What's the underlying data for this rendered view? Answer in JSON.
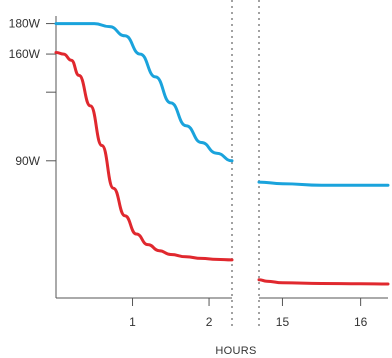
{
  "chart_data": {
    "type": "line",
    "xlabel": "HOURS",
    "ylabel": "",
    "title": "",
    "broken_x_axis": true,
    "x_segments": [
      {
        "range": [
          0,
          2.3
        ],
        "ticks": [
          {
            "value": 1,
            "label": "1"
          },
          {
            "value": 2,
            "label": "2"
          }
        ]
      },
      {
        "range": [
          14.7,
          16.35
        ],
        "ticks": [
          {
            "value": 15,
            "label": "15"
          },
          {
            "value": 16,
            "label": "16"
          }
        ]
      }
    ],
    "y_ticks": [
      {
        "value": 180,
        "label": "180W"
      },
      {
        "value": 160,
        "label": "160W"
      },
      {
        "value": 135,
        "label": ""
      },
      {
        "value": 90,
        "label": "90W"
      }
    ],
    "ylim": [
      0,
      183
    ],
    "series": [
      {
        "color": "#1aa3dc",
        "segments": [
          [
            [
              0,
              180
            ],
            [
              0.5,
              180
            ],
            [
              0.7,
              178
            ],
            [
              0.9,
              172
            ],
            [
              1.1,
              160
            ],
            [
              1.3,
              145
            ],
            [
              1.5,
              128
            ],
            [
              1.7,
              113
            ],
            [
              1.9,
              102
            ],
            [
              2.1,
              95
            ],
            [
              2.3,
              90
            ]
          ],
          [
            [
              14.7,
              76
            ],
            [
              15.0,
              75
            ],
            [
              15.5,
              74
            ],
            [
              16.0,
              74
            ],
            [
              16.35,
              74
            ]
          ]
        ]
      },
      {
        "color": "#e0282e",
        "segments": [
          [
            [
              0,
              161
            ],
            [
              0.1,
              160
            ],
            [
              0.2,
              156
            ],
            [
              0.3,
              146
            ],
            [
              0.45,
              126
            ],
            [
              0.6,
              100
            ],
            [
              0.75,
              72
            ],
            [
              0.9,
              54
            ],
            [
              1.05,
              42
            ],
            [
              1.2,
              35
            ],
            [
              1.35,
              31
            ],
            [
              1.5,
              28.5
            ],
            [
              1.7,
              27
            ],
            [
              1.9,
              26
            ],
            [
              2.1,
              25.3
            ],
            [
              2.3,
              25
            ]
          ],
          [
            [
              14.7,
              12
            ],
            [
              14.8,
              11
            ],
            [
              15.0,
              10
            ],
            [
              15.5,
              9.5
            ],
            [
              16.0,
              9.3
            ],
            [
              16.35,
              9.2
            ]
          ]
        ]
      }
    ]
  }
}
